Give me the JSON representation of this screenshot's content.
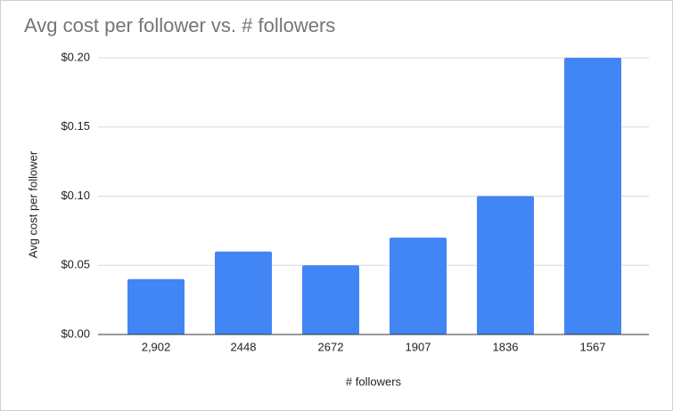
{
  "chart_data": {
    "type": "bar",
    "title": "Avg cost per follower vs. # followers",
    "x_label": "# followers",
    "y_label": "Avg cost per follower",
    "categories": [
      "2,902",
      "2448",
      "2672",
      "1907",
      "1836",
      "1567"
    ],
    "values": [
      0.04,
      0.06,
      0.05,
      0.07,
      0.1,
      0.2
    ],
    "color": "#4285f4",
    "ylim": [
      0,
      0.2
    ],
    "yticks": [
      {
        "value": 0,
        "label": "$0.00"
      },
      {
        "value": 0.05,
        "label": "$0.05"
      },
      {
        "value": 0.1,
        "label": "$0.10"
      },
      {
        "value": 0.15,
        "label": "$0.15"
      },
      {
        "value": 0.2,
        "label": "$0.20"
      }
    ],
    "grid": true
  }
}
